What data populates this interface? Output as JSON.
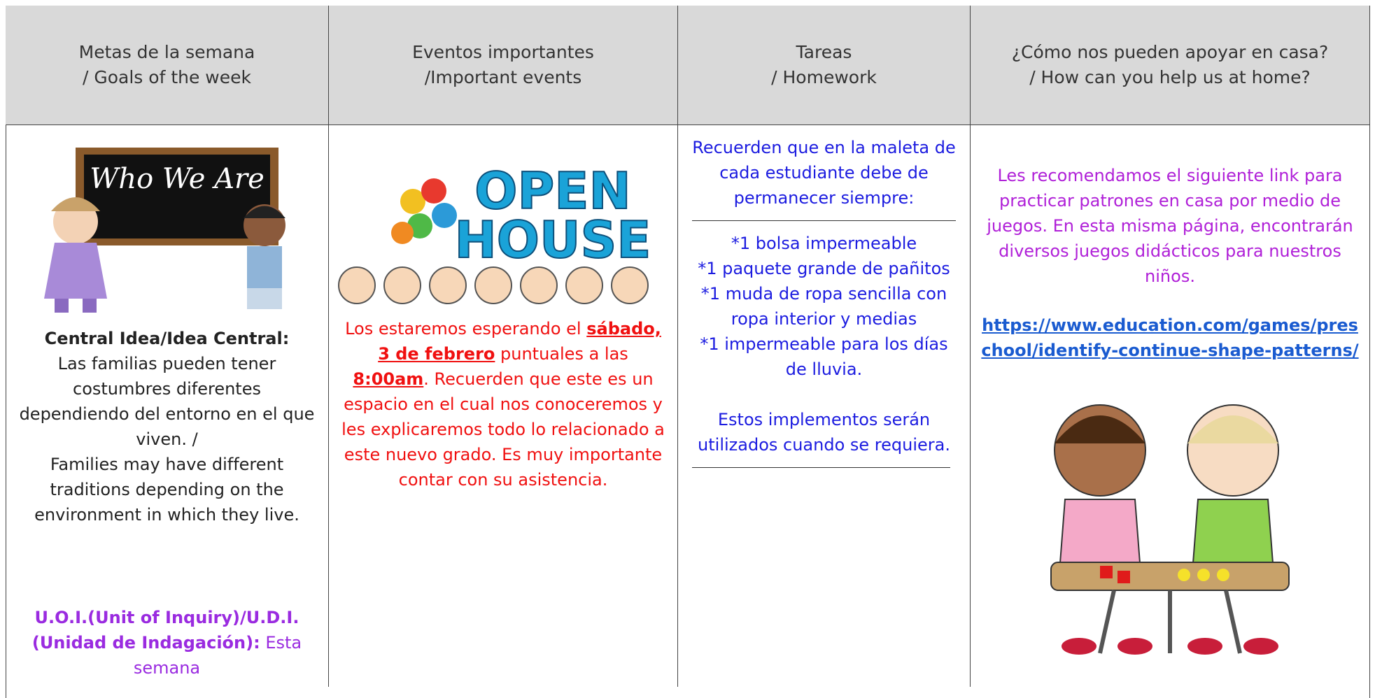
{
  "table": {
    "headers": [
      [
        "Metas de la semana",
        "/ Goals of the week"
      ],
      [
        "Eventos importantes",
        "/Important events"
      ],
      [
        "Tareas",
        "/ Homework"
      ],
      [
        "¿Cómo nos pueden apoyar en casa?",
        "/ How can you help us at home?"
      ]
    ],
    "goals": {
      "image_text": "Who We Are",
      "central_label": "Central Idea/Idea Central:",
      "central_es": "Las familias pueden tener costumbres diferentes dependiendo del entorno en el que viven. /",
      "central_en": "Families may have different traditions depending on the environment in which they live.",
      "uoi_label": "U.O.I.(Unit of Inquiry)/U.D.I.(Unidad de Indagación):",
      "uoi_text": "Esta semana"
    },
    "events": {
      "image_text": [
        "OPEN",
        "HOUSE"
      ],
      "parts": [
        "Los estaremos esperando el ",
        "sábado, 3 de febrero",
        " puntuales a las ",
        "8:00am",
        ". Recuerden que este es un espacio en el cual nos conoceremos y les explicaremos todo lo relacionado a este nuevo grado.  Es muy importante contar con su asistencia."
      ]
    },
    "homework": {
      "intro": "Recuerden que en la maleta de cada estudiante debe de permanecer siempre:",
      "items": [
        "*1 bolsa impermeable",
        "*1 paquete grande de pañitos",
        "*1 muda de ropa sencilla con ropa interior y medias",
        "*1 impermeable para los días de lluvia."
      ],
      "outro": "Estos implementos serán utilizados cuando se requiera."
    },
    "home": {
      "text": "Les recomendamos el siguiente link para practicar patrones en casa por medio de juegos. En esta misma página, encontrarán diversos juegos didácticos para nuestros niños.",
      "link": "https://www.education.com/games/preschool/identify-continue-shape-patterns/"
    }
  }
}
